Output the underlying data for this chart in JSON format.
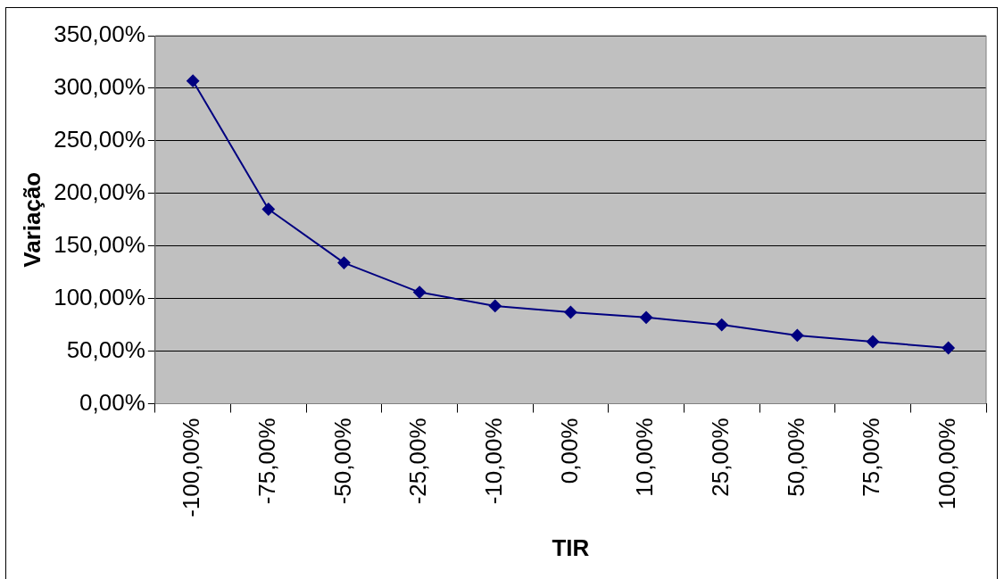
{
  "chart_data": {
    "type": "line",
    "xlabel": "TIR",
    "ylabel": "Variação",
    "categories": [
      "-100,00%",
      "-75,00%",
      "-50,00%",
      "-25,00%",
      "-10,00%",
      "0,00%",
      "10,00%",
      "25,00%",
      "50,00%",
      "75,00%",
      "100,00%"
    ],
    "series": [
      {
        "color": "#000080",
        "values": [
          307,
          185,
          134,
          106,
          93,
          87,
          82,
          75,
          65,
          59,
          53
        ]
      }
    ],
    "ylim": [
      0,
      350
    ],
    "yticks": [
      {
        "value": 0,
        "label": "0,00%"
      },
      {
        "value": 50,
        "label": "50,00%"
      },
      {
        "value": 100,
        "label": "100,00%"
      },
      {
        "value": 150,
        "label": "150,00%"
      },
      {
        "value": 200,
        "label": "200,00%"
      },
      {
        "value": 250,
        "label": "250,00%"
      },
      {
        "value": 300,
        "label": "300,00%"
      },
      {
        "value": 350,
        "label": "350,00%"
      }
    ],
    "grid": "y",
    "legend": false,
    "marker": "diamond",
    "line_style": "solid"
  }
}
